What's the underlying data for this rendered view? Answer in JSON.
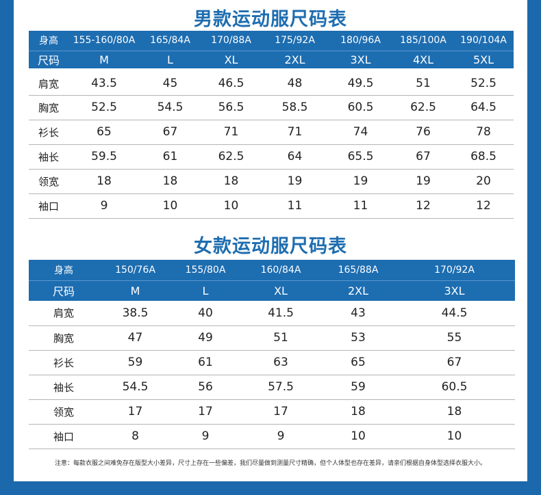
{
  "men": {
    "title": "男款运动服尺码表",
    "height_label": "身高",
    "size_label": "尺码",
    "heights": [
      "155-160/80A",
      "165/84A",
      "170/88A",
      "175/92A",
      "180/96A",
      "185/100A",
      "190/104A"
    ],
    "sizes": [
      "M",
      "L",
      "XL",
      "2XL",
      "3XL",
      "4XL",
      "5XL"
    ],
    "rows": [
      {
        "label": "肩宽",
        "values": [
          "43.5",
          "45",
          "46.5",
          "48",
          "49.5",
          "51",
          "52.5"
        ]
      },
      {
        "label": "胸宽",
        "values": [
          "52.5",
          "54.5",
          "56.5",
          "58.5",
          "60.5",
          "62.5",
          "64.5"
        ]
      },
      {
        "label": "衫长",
        "values": [
          "65",
          "67",
          "71",
          "71",
          "74",
          "76",
          "78"
        ]
      },
      {
        "label": "袖长",
        "values": [
          "59.5",
          "61",
          "62.5",
          "64",
          "65.5",
          "67",
          "68.5"
        ]
      },
      {
        "label": "领宽",
        "values": [
          "18",
          "18",
          "18",
          "19",
          "19",
          "19",
          "20"
        ]
      },
      {
        "label": "袖口",
        "values": [
          "9",
          "10",
          "10",
          "11",
          "11",
          "12",
          "12"
        ]
      }
    ]
  },
  "women": {
    "title": "女款运动服尺码表",
    "height_label": "身高",
    "size_label": "尺码",
    "heights": [
      "150/76A",
      "155/80A",
      "160/84A",
      "165/88A",
      "170/92A"
    ],
    "sizes": [
      "M",
      "L",
      "XL",
      "2XL",
      "3XL"
    ],
    "rows": [
      {
        "label": "肩宽",
        "values": [
          "38.5",
          "40",
          "41.5",
          "43",
          "44.5"
        ]
      },
      {
        "label": "胸宽",
        "values": [
          "47",
          "49",
          "51",
          "53",
          "55"
        ]
      },
      {
        "label": "衫长",
        "values": [
          "59",
          "61",
          "63",
          "65",
          "67"
        ]
      },
      {
        "label": "袖长",
        "values": [
          "54.5",
          "56",
          "57.5",
          "59",
          "60.5"
        ]
      },
      {
        "label": "领宽",
        "values": [
          "17",
          "17",
          "17",
          "18",
          "18"
        ]
      },
      {
        "label": "袖口",
        "values": [
          "8",
          "9",
          "9",
          "10",
          "10"
        ]
      }
    ]
  },
  "note": "注意：每款衣服之间难免存在版型大小差异，尺寸上存在一些偏差，我们尽量做到测量尺寸精确，但个人体型也存在差异，请亲们根据自身体型选择衣服大小。",
  "colors": {
    "border": "#1b68ad",
    "header_bg": "#1d6db1",
    "title": "#1e6db0"
  }
}
